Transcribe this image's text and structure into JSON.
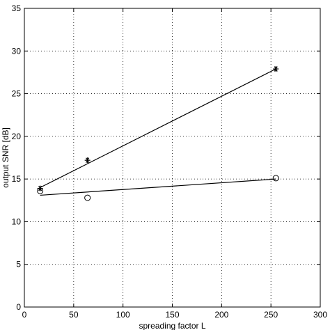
{
  "chart_data": {
    "type": "scatter",
    "xlabel": "spreading factor L",
    "ylabel": "output SNR [dB]",
    "xlim": [
      0,
      300
    ],
    "ylim": [
      0,
      35
    ],
    "xticks": [
      0,
      50,
      100,
      150,
      200,
      250,
      300
    ],
    "yticks": [
      0,
      5,
      10,
      15,
      20,
      25,
      30,
      35
    ],
    "grid": true,
    "series": [
      {
        "marker": "asterisk",
        "points": {
          "x": [
            16,
            64,
            255
          ],
          "y": [
            13.9,
            17.2,
            27.9
          ]
        },
        "fit_line": {
          "x": [
            16,
            255
          ],
          "y": [
            14.0,
            27.9
          ]
        },
        "color": "#000000"
      },
      {
        "marker": "circle",
        "points": {
          "x": [
            16,
            64,
            255
          ],
          "y": [
            13.6,
            12.8,
            15.1
          ]
        },
        "fit_line": {
          "x": [
            16,
            255
          ],
          "y": [
            13.1,
            15.0
          ]
        },
        "color": "#000000"
      }
    ]
  }
}
